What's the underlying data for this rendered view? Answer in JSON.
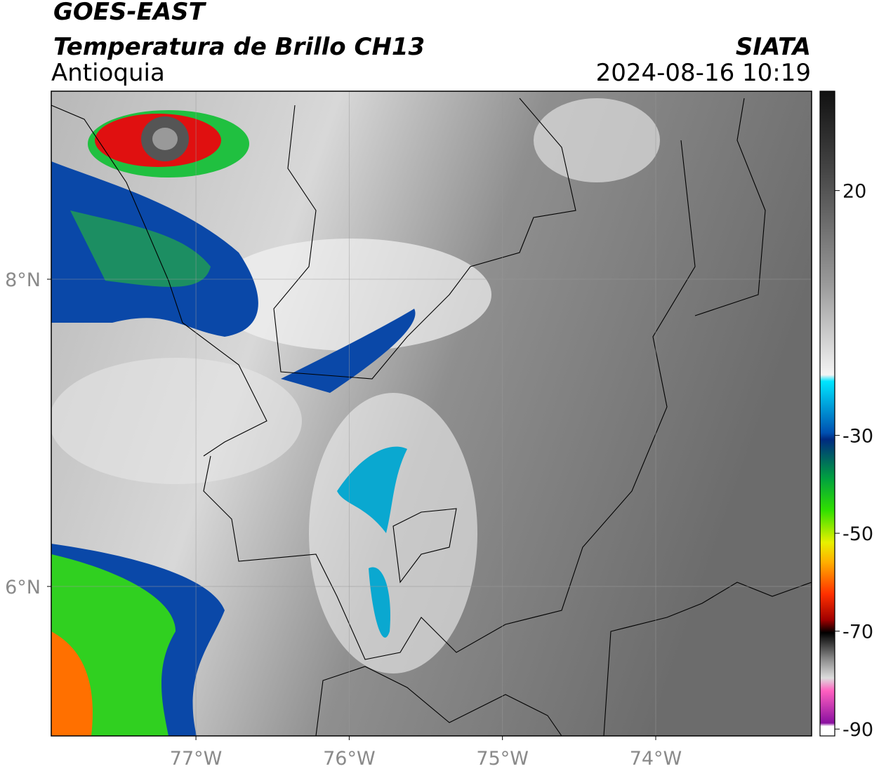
{
  "header": {
    "source": "GOES-EAST",
    "title": "Temperatura de Brillo CH13",
    "region": "Antioquia",
    "organization": "SIATA",
    "datetime": "2024-08-16 10:19"
  },
  "chart_data": {
    "type": "map",
    "xlim": [
      -77.944,
      -72.983
    ],
    "ylim": [
      5.027,
      9.224
    ],
    "xticks": [
      {
        "value": -77,
        "label": "77°W"
      },
      {
        "value": -76,
        "label": "76°W"
      },
      {
        "value": -75,
        "label": "75°W"
      },
      {
        "value": -74,
        "label": "74°W"
      }
    ],
    "yticks": [
      {
        "value": 8,
        "label": "8°N"
      },
      {
        "value": 6,
        "label": "6°N"
      }
    ],
    "grid": true,
    "colorbar": {
      "lim": [
        -91.4,
        40.3
      ],
      "ticks": [
        20,
        -30,
        -50,
        -70,
        -90
      ]
    }
  }
}
